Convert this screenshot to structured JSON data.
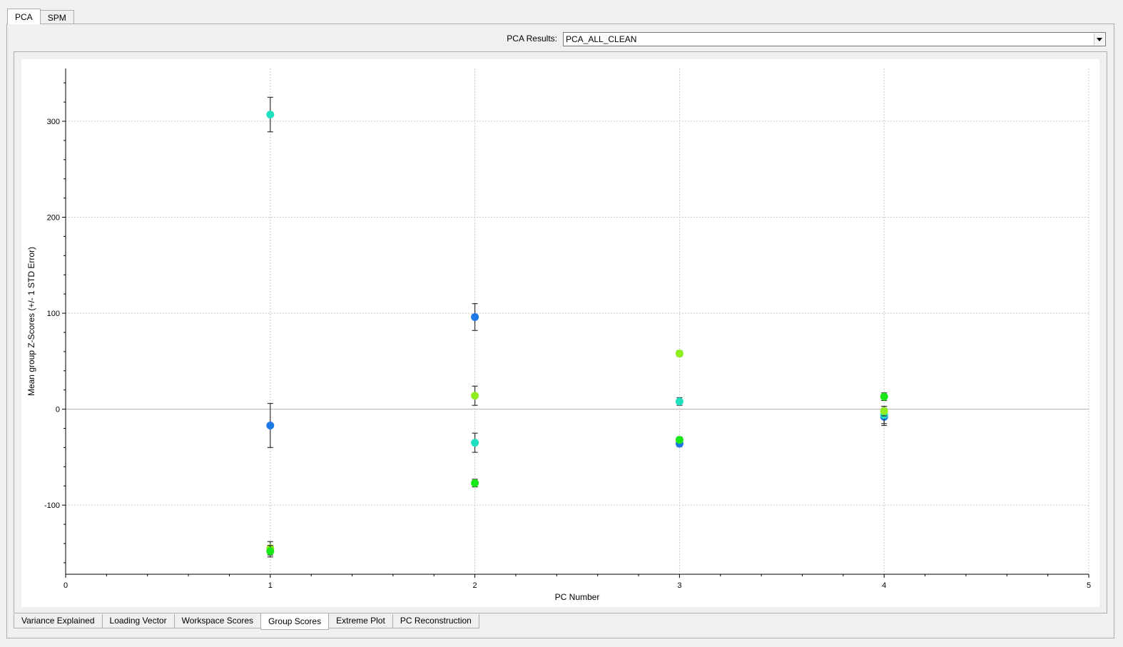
{
  "top_tabs": [
    {
      "label": "PCA",
      "active": true
    },
    {
      "label": "SPM",
      "active": false
    }
  ],
  "results": {
    "label": "PCA Results:",
    "value": "PCA_ALL_CLEAN"
  },
  "bottom_tabs": [
    {
      "label": "Variance Explained",
      "active": false
    },
    {
      "label": "Loading Vector",
      "active": false
    },
    {
      "label": "Workspace Scores",
      "active": false
    },
    {
      "label": "Group Scores",
      "active": true
    },
    {
      "label": "Extreme Plot",
      "active": false
    },
    {
      "label": "PC Reconstruction",
      "active": false
    }
  ],
  "colors": {
    "blue": "#1e78e6",
    "cyan": "#20e0c0",
    "lime": "#90ee20",
    "green": "#18e818"
  },
  "chart_data": {
    "type": "scatter",
    "xlabel": "PC Number",
    "ylabel": "Mean group Z-Scores (+/- 1 STD Error)",
    "xlim": [
      0,
      5
    ],
    "ylim": [
      -172,
      355
    ],
    "xticks": [
      0,
      1,
      2,
      3,
      4,
      5
    ],
    "yticks": [
      -100,
      0,
      100,
      200,
      300
    ],
    "grid": true,
    "series": [
      {
        "color": "blue",
        "points": [
          {
            "x": 1,
            "y": -17,
            "err": 23
          },
          {
            "x": 2,
            "y": 96,
            "err": 14
          },
          {
            "x": 3,
            "y": -36,
            "err": 3
          },
          {
            "x": 4,
            "y": -8,
            "err": 9
          }
        ]
      },
      {
        "color": "cyan",
        "points": [
          {
            "x": 1,
            "y": 307,
            "err": 18
          },
          {
            "x": 2,
            "y": -35,
            "err": 10
          },
          {
            "x": 3,
            "y": 8,
            "err": 4
          },
          {
            "x": 4,
            "y": -6,
            "err": 9
          }
        ]
      },
      {
        "color": "lime",
        "points": [
          {
            "x": 1,
            "y": -145,
            "err": 7
          },
          {
            "x": 2,
            "y": 14,
            "err": 10
          },
          {
            "x": 3,
            "y": 58,
            "err": 3
          },
          {
            "x": 4,
            "y": -2,
            "err": 5
          }
        ]
      },
      {
        "color": "green",
        "points": [
          {
            "x": 1,
            "y": -148,
            "err": 6
          },
          {
            "x": 2,
            "y": -77,
            "err": 4
          },
          {
            "x": 3,
            "y": -32,
            "err": 3
          },
          {
            "x": 4,
            "y": 13,
            "err": 4
          }
        ]
      }
    ]
  }
}
